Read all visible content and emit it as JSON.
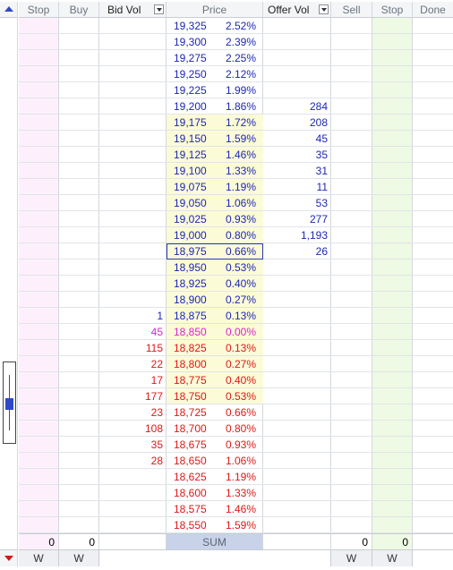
{
  "headers": {
    "stop_left": "Stop",
    "buy": "Buy",
    "bid_vol": "Bid Vol",
    "price": "Price",
    "offer_vol": "Offer Vol",
    "sell": "Sell",
    "stop_right": "Stop",
    "done": "Done"
  },
  "ladder": [
    {
      "price": "19,325",
      "pct": "2.52%",
      "bid": "",
      "offer": "",
      "color": "blue"
    },
    {
      "price": "19,300",
      "pct": "2.39%",
      "bid": "",
      "offer": "",
      "color": "blue"
    },
    {
      "price": "19,275",
      "pct": "2.25%",
      "bid": "",
      "offer": "",
      "color": "blue"
    },
    {
      "price": "19,250",
      "pct": "2.12%",
      "bid": "",
      "offer": "",
      "color": "blue"
    },
    {
      "price": "19,225",
      "pct": "1.99%",
      "bid": "",
      "offer": "",
      "color": "blue"
    },
    {
      "price": "19,200",
      "pct": "1.86%",
      "bid": "",
      "offer": "284",
      "color": "blue"
    },
    {
      "price": "19,175",
      "pct": "1.72%",
      "bid": "",
      "offer": "208",
      "color": "blue"
    },
    {
      "price": "19,150",
      "pct": "1.59%",
      "bid": "",
      "offer": "45",
      "color": "blue"
    },
    {
      "price": "19,125",
      "pct": "1.46%",
      "bid": "",
      "offer": "35",
      "color": "blue"
    },
    {
      "price": "19,100",
      "pct": "1.33%",
      "bid": "",
      "offer": "31",
      "color": "blue"
    },
    {
      "price": "19,075",
      "pct": "1.19%",
      "bid": "",
      "offer": "11",
      "color": "blue"
    },
    {
      "price": "19,050",
      "pct": "1.06%",
      "bid": "",
      "offer": "53",
      "color": "blue"
    },
    {
      "price": "19,025",
      "pct": "0.93%",
      "bid": "",
      "offer": "277",
      "color": "blue"
    },
    {
      "price": "19,000",
      "pct": "0.80%",
      "bid": "",
      "offer": "1,193",
      "color": "blue"
    },
    {
      "price": "18,975",
      "pct": "0.66%",
      "bid": "",
      "offer": "26",
      "color": "blue",
      "selected": true
    },
    {
      "price": "18,950",
      "pct": "0.53%",
      "bid": "",
      "offer": "",
      "color": "blue"
    },
    {
      "price": "18,925",
      "pct": "0.40%",
      "bid": "",
      "offer": "",
      "color": "blue"
    },
    {
      "price": "18,900",
      "pct": "0.27%",
      "bid": "",
      "offer": "",
      "color": "blue"
    },
    {
      "price": "18,875",
      "pct": "0.13%",
      "bid": "1",
      "offer": "",
      "color": "blue"
    },
    {
      "price": "18,850",
      "pct": "0.00%",
      "bid": "45",
      "offer": "",
      "color": "magenta"
    },
    {
      "price": "18,825",
      "pct": "0.13%",
      "bid": "115",
      "offer": "",
      "color": "red"
    },
    {
      "price": "18,800",
      "pct": "0.27%",
      "bid": "22",
      "offer": "",
      "color": "red"
    },
    {
      "price": "18,775",
      "pct": "0.40%",
      "bid": "17",
      "offer": "",
      "color": "red"
    },
    {
      "price": "18,750",
      "pct": "0.53%",
      "bid": "177",
      "offer": "",
      "color": "red"
    },
    {
      "price": "18,725",
      "pct": "0.66%",
      "bid": "23",
      "offer": "",
      "color": "red"
    },
    {
      "price": "18,700",
      "pct": "0.80%",
      "bid": "108",
      "offer": "",
      "color": "red"
    },
    {
      "price": "18,675",
      "pct": "0.93%",
      "bid": "35",
      "offer": "",
      "color": "red"
    },
    {
      "price": "18,650",
      "pct": "1.06%",
      "bid": "28",
      "offer": "",
      "color": "red"
    },
    {
      "price": "18,625",
      "pct": "1.19%",
      "bid": "",
      "offer": "",
      "color": "red"
    },
    {
      "price": "18,600",
      "pct": "1.33%",
      "bid": "",
      "offer": "",
      "color": "red"
    },
    {
      "price": "18,575",
      "pct": "1.46%",
      "bid": "",
      "offer": "",
      "color": "red"
    },
    {
      "price": "18,550",
      "pct": "1.59%",
      "bid": "",
      "offer": "",
      "color": "red"
    }
  ],
  "footer": {
    "stop_left_total": "0",
    "buy_total": "0",
    "sum_label": "SUM",
    "sell_total": "0",
    "stop_right_total": "0"
  },
  "buttons": {
    "stop_left_w": "W",
    "buy_w": "W",
    "sell_w": "W",
    "stop_right_w": "W"
  },
  "colors": {
    "blue": "#1d27b5",
    "magenta": "#e020d0",
    "red": "#e01818",
    "stop_left_bg": "#fdf0fc",
    "stop_right_bg": "#eefae3",
    "price_hi_bg": "#fbfbd8",
    "sum_bg": "#c8d3ea"
  }
}
